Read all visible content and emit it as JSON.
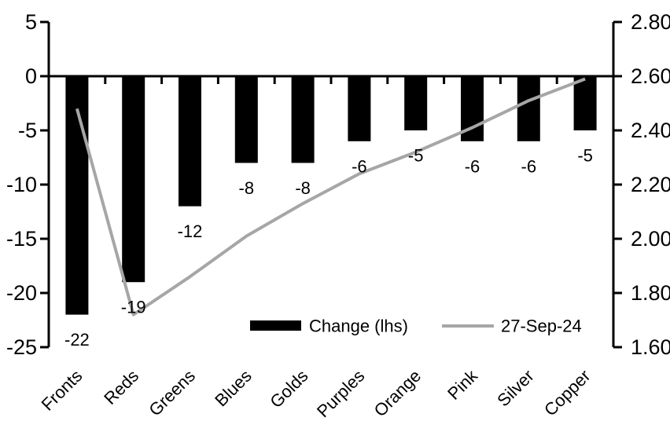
{
  "chart_data": {
    "type": "bar",
    "subtype": "dual-axis bar with line overlay",
    "title": "",
    "xlabel": "",
    "ylabel_left": "",
    "ylabel_right": "",
    "grid": false,
    "categories": [
      "Fronts",
      "Reds",
      "Greens",
      "Blues",
      "Golds",
      "Purples",
      "Orange",
      "Pink",
      "Silver",
      "Copper"
    ],
    "series": [
      {
        "name": "Change (lhs)",
        "type": "bar",
        "axis": "left",
        "color": "#000000",
        "values": [
          -22,
          -19,
          -12,
          -8,
          -8,
          -6,
          -5,
          -6,
          -6,
          -5
        ],
        "labels": [
          "-22",
          "-19",
          "-12",
          "-8",
          "-8",
          "-6",
          "-5",
          "-6",
          "-6",
          "-5"
        ]
      },
      {
        "name": "27-Sep-24",
        "type": "line",
        "axis": "right",
        "color": "#a6a6a6",
        "values": [
          2.48,
          1.72,
          1.86,
          2.01,
          2.13,
          2.24,
          2.32,
          2.41,
          2.51,
          2.59
        ]
      }
    ],
    "left_axis": {
      "ticks": [
        "5",
        "0",
        "-5",
        "-10",
        "-15",
        "-20",
        "-25"
      ],
      "range": [
        -25,
        5
      ]
    },
    "right_axis": {
      "ticks": [
        "2.80",
        "2.60",
        "2.40",
        "2.20",
        "2.00",
        "1.80",
        "1.60"
      ],
      "range": [
        1.6,
        2.8
      ]
    },
    "legend": {
      "position": "bottom-center",
      "entries": [
        {
          "label": "Change (lhs)",
          "swatch": "bar",
          "color": "#000000"
        },
        {
          "label": "27-Sep-24",
          "swatch": "line",
          "color": "#a6a6a6"
        }
      ]
    },
    "colors": {
      "background": "#ffffff",
      "axis": "#000000",
      "text": "#000000"
    }
  }
}
